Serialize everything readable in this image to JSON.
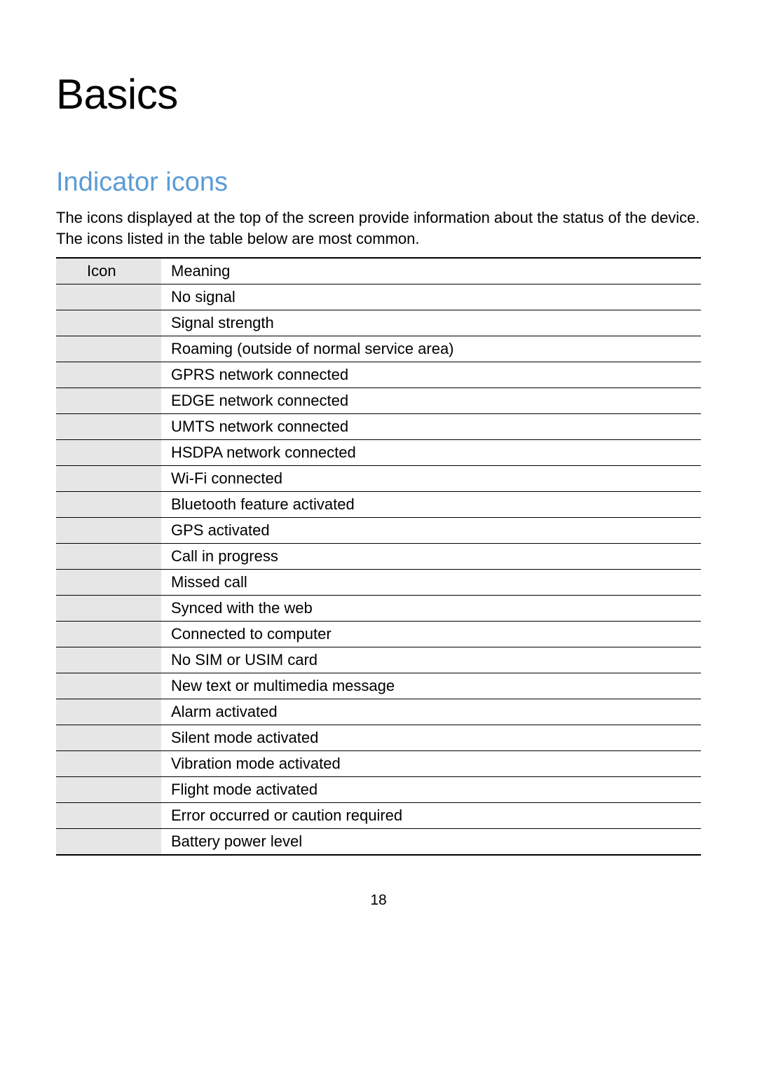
{
  "title": "Basics",
  "subtitle": "Indicator icons",
  "intro": "The icons displayed at the top of the screen provide information about the status of the device. The icons listed in the table below are most common.",
  "table": {
    "columns": [
      "Icon",
      "Meaning"
    ],
    "col_icon_bg": "#e6e6e6",
    "border_color": "#000000",
    "rows": [
      {
        "icon": "",
        "meaning": "No signal"
      },
      {
        "icon": "",
        "meaning": "Signal strength"
      },
      {
        "icon": "",
        "meaning": "Roaming (outside of normal service area)"
      },
      {
        "icon": "",
        "meaning": "GPRS network connected"
      },
      {
        "icon": "",
        "meaning": "EDGE network connected"
      },
      {
        "icon": "",
        "meaning": "UMTS network connected"
      },
      {
        "icon": "",
        "meaning": "HSDPA network connected"
      },
      {
        "icon": "",
        "meaning": "Wi-Fi connected"
      },
      {
        "icon": "",
        "meaning": "Bluetooth feature activated"
      },
      {
        "icon": "",
        "meaning": "GPS activated"
      },
      {
        "icon": "",
        "meaning": "Call in progress"
      },
      {
        "icon": "",
        "meaning": "Missed call"
      },
      {
        "icon": "",
        "meaning": "Synced with the web"
      },
      {
        "icon": "",
        "meaning": "Connected to computer"
      },
      {
        "icon": "",
        "meaning": "No SIM or USIM card"
      },
      {
        "icon": "",
        "meaning": "New text or multimedia message"
      },
      {
        "icon": "",
        "meaning": "Alarm activated"
      },
      {
        "icon": "",
        "meaning": "Silent mode activated"
      },
      {
        "icon": "",
        "meaning": "Vibration mode activated"
      },
      {
        "icon": "",
        "meaning": "Flight mode activated"
      },
      {
        "icon": "",
        "meaning": "Error occurred or caution required"
      },
      {
        "icon": "",
        "meaning": "Battery power level"
      }
    ]
  },
  "page_number": "18",
  "subtitle_color": "#5b9bd5",
  "text_color": "#000000",
  "background_color": "#ffffff"
}
